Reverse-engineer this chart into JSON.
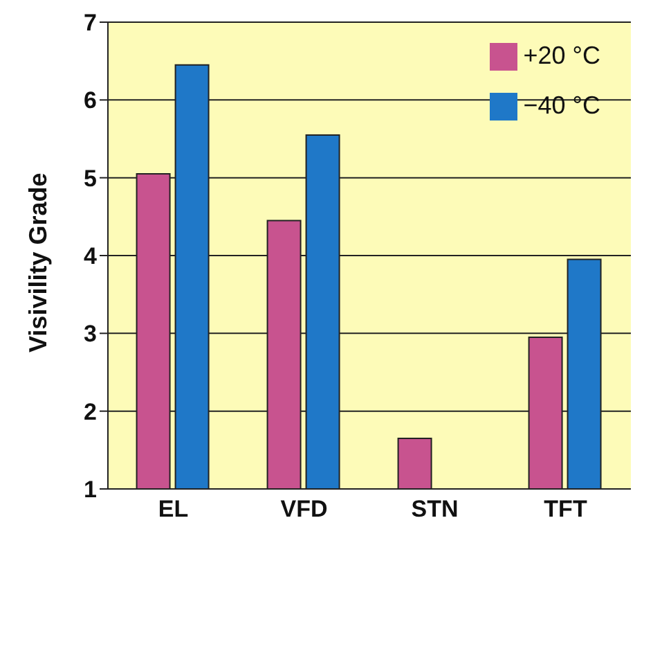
{
  "chart_data": {
    "type": "bar",
    "ylabel": "Visivility Grade",
    "categories": [
      "EL",
      "VFD",
      "STN",
      "TFT"
    ],
    "series": [
      {
        "name": "+20 °C",
        "color": "#c8538f",
        "values": [
          5.05,
          4.45,
          1.65,
          2.95
        ]
      },
      {
        "name": "−40 °C",
        "color": "#1f78c8",
        "values": [
          6.45,
          5.55,
          1.0,
          3.95
        ]
      }
    ],
    "ylim": [
      1,
      7
    ],
    "yticks": [
      1,
      2,
      3,
      4,
      5,
      6,
      7
    ],
    "grid": "y",
    "legend": "top right"
  }
}
